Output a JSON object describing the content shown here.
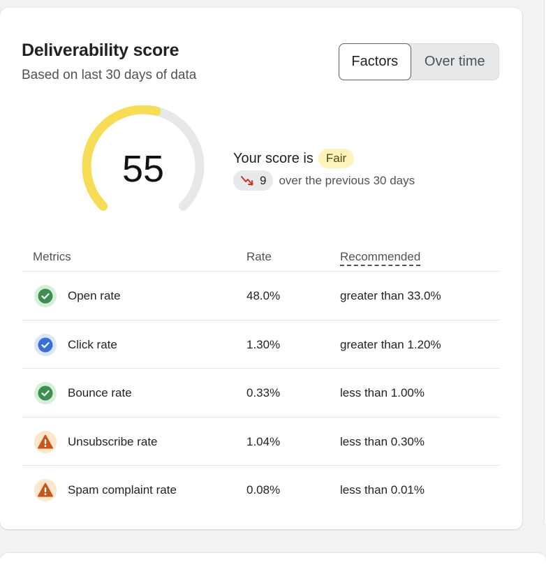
{
  "card": {
    "title": "Deliverability score",
    "subtitle": "Based on last 30 days of data"
  },
  "toggle": {
    "options": [
      "Factors",
      "Over time"
    ],
    "selected": "Factors"
  },
  "gauge": {
    "score": "55",
    "max": 100,
    "fill_fraction": 0.55,
    "fill_color": "#f7dc55",
    "track_color": "#e6e8e9"
  },
  "score_summary": {
    "prefix": "Your score is",
    "rating": "Fair",
    "trend_icon": "trend-down-icon",
    "trend_value": "9",
    "trend_text": "over the previous 30 days"
  },
  "metrics_table": {
    "headers": {
      "metrics": "Metrics",
      "rate": "Rate",
      "recommended": "Recommended"
    },
    "rows": [
      {
        "name": "Open rate",
        "rate": "48.0%",
        "recommended": "greater than 33.0%",
        "status": "good",
        "icon": "check-circle-icon"
      },
      {
        "name": "Click rate",
        "rate": "1.30%",
        "recommended": "greater than 1.20%",
        "status": "info",
        "icon": "check-circle-icon"
      },
      {
        "name": "Bounce rate",
        "rate": "0.33%",
        "recommended": "less than 1.00%",
        "status": "good",
        "icon": "check-circle-icon"
      },
      {
        "name": "Unsubscribe rate",
        "rate": "1.04%",
        "recommended": "less than 0.30%",
        "status": "warning",
        "icon": "warning-triangle-icon"
      },
      {
        "name": "Spam complaint rate",
        "rate": "0.08%",
        "recommended": "less than 0.01%",
        "status": "warning",
        "icon": "warning-triangle-icon"
      }
    ]
  },
  "colors": {
    "good": "#3e8e51",
    "good_bg": "#d6efd9",
    "info": "#3a6fd8",
    "info_bg": "#dbe6fb",
    "warning": "#c4561f",
    "warning_bg": "#fde6c9",
    "trend_down": "#c8312b"
  }
}
